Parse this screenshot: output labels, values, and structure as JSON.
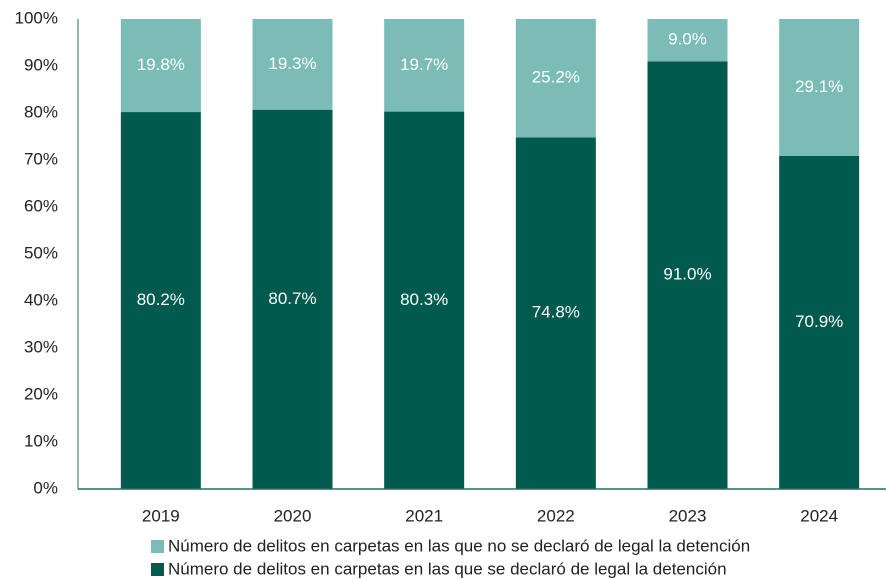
{
  "chart_data": {
    "type": "stacked_bar",
    "categories": [
      "2019",
      "2020",
      "2021",
      "2022",
      "2023",
      "2024"
    ],
    "series": [
      {
        "name": "Número de delitos en carpetas en las que no se declaró de legal la detención",
        "color": "#7bbcb6",
        "values": [
          19.8,
          19.3,
          19.7,
          25.2,
          9.0,
          29.1
        ],
        "value_labels": [
          "19.8%",
          "19.3%",
          "19.7%",
          "25.2%",
          "9.0%",
          "29.1%"
        ]
      },
      {
        "name": "Número de delitos en carpetas en las que se declaró de legal la detención",
        "color": "#005a4e",
        "values": [
          80.2,
          80.7,
          80.3,
          74.8,
          91.0,
          70.9
        ],
        "value_labels": [
          "80.2%",
          "80.7%",
          "80.3%",
          "74.8%",
          "91.0%",
          "70.9%"
        ]
      }
    ],
    "ylim": [
      0,
      100
    ],
    "yticks": [
      {
        "value": 0,
        "label": "0%"
      },
      {
        "value": 10,
        "label": "10%"
      },
      {
        "value": 20,
        "label": "20%"
      },
      {
        "value": 30,
        "label": "30%"
      },
      {
        "value": 40,
        "label": "40%"
      },
      {
        "value": 50,
        "label": "50%"
      },
      {
        "value": 60,
        "label": "60%"
      },
      {
        "value": 70,
        "label": "70%"
      },
      {
        "value": 80,
        "label": "80%"
      },
      {
        "value": 90,
        "label": "90%"
      },
      {
        "value": 100,
        "label": "100%"
      }
    ],
    "grid": false
  }
}
